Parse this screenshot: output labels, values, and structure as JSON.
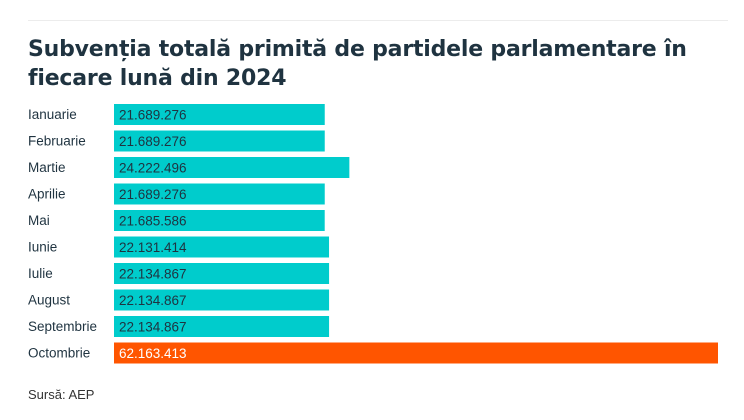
{
  "chart_data": {
    "type": "bar",
    "orientation": "horizontal",
    "title": "Subvenția totală primită de partidele parlamentare în fiecare lună din 2024",
    "categories": [
      "Ianuarie",
      "Februarie",
      "Martie",
      "Aprilie",
      "Mai",
      "Iunie",
      "Iulie",
      "August",
      "Septembrie",
      "Octombrie"
    ],
    "values": [
      21689276,
      21689276,
      24222496,
      21689276,
      21685586,
      22131414,
      22134867,
      22134867,
      22134867,
      62163413
    ],
    "value_labels": [
      "21.689.276",
      "21.689.276",
      "24.222.496",
      "21.689.276",
      "21.685.586",
      "22.131.414",
      "22.134.867",
      "22.134.867",
      "22.134.867",
      "62.163.413"
    ],
    "highlight_index": 9,
    "colors": {
      "bar": "#00cccc",
      "highlight": "#ff5500",
      "label": "#1f3340",
      "value_text": "#1f3340",
      "value_text_highlight": "#ffffff"
    },
    "xlim": [
      0,
      62163413
    ],
    "grid": false,
    "legend": "none",
    "source": "Sursă: AEP"
  }
}
